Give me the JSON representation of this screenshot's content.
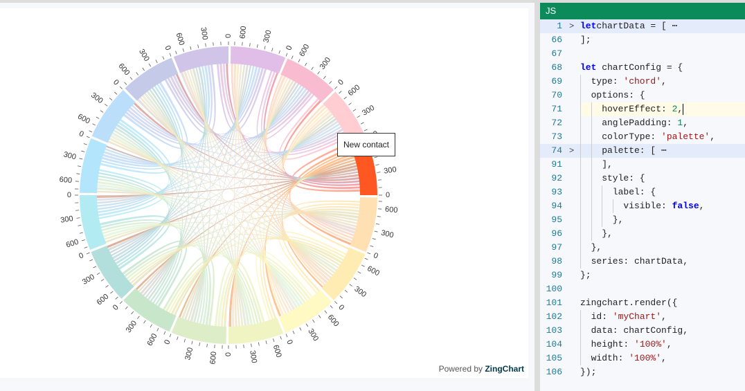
{
  "chart_data": {
    "type": "chord",
    "title": "",
    "groups": 16,
    "group_labels_visible": false,
    "tick_labels": [
      "0",
      "300",
      "600"
    ],
    "group_value_approx": 750,
    "hover_effect": 2,
    "angle_padding": 1,
    "color_type": "palette",
    "highlighted_group": {
      "index": 0,
      "label": "New contact",
      "color": "#ff5722"
    },
    "palette": [
      "#ff5722",
      "#ffcdd2",
      "#f8bbd0",
      "#e1bee7",
      "#d1c4e9",
      "#c5cae9",
      "#bbdefb",
      "#b3e5fc",
      "#b2ebf2",
      "#b2dfdb",
      "#c8e6c9",
      "#dcedc8",
      "#f0f4c3",
      "#fff9c4",
      "#ffecb3",
      "#ffe0b2"
    ]
  },
  "chart": {
    "tooltip": "New contact",
    "powered_by_prefix": "Powered by ",
    "powered_by_brand": "ZingChart"
  },
  "editor": {
    "tab_label": "JS",
    "lines": [
      {
        "n": "1",
        "fold": "›",
        "parts": [
          [
            "kw",
            "let"
          ],
          [
            "",
            "chartData = [ "
          ],
          [
            "",
            "⋯"
          ]
        ],
        "hl": "blue",
        "indent": 0
      },
      {
        "n": "66",
        "parts": [
          [
            "",
            "];"
          ]
        ],
        "indent": 0
      },
      {
        "n": "67",
        "parts": [],
        "indent": 0
      },
      {
        "n": "68",
        "parts": [
          [
            "kw",
            "let"
          ],
          [
            "",
            " chartConfig = {"
          ]
        ],
        "indent": 0
      },
      {
        "n": "69",
        "parts": [
          [
            "",
            "type: "
          ],
          [
            "str",
            "'chord'"
          ],
          [
            "",
            ","
          ]
        ],
        "indent": 1
      },
      {
        "n": "70",
        "parts": [
          [
            "",
            "options: {"
          ]
        ],
        "indent": 1
      },
      {
        "n": "71",
        "parts": [
          [
            "",
            "hoverEffect: "
          ],
          [
            "num",
            "2"
          ],
          [
            "",
            ","
          ]
        ],
        "indent": 2,
        "hl": "yellow",
        "caret": true
      },
      {
        "n": "72",
        "parts": [
          [
            "",
            "anglePadding: "
          ],
          [
            "num",
            "1"
          ],
          [
            "",
            ","
          ]
        ],
        "indent": 2
      },
      {
        "n": "73",
        "parts": [
          [
            "",
            "colorType: "
          ],
          [
            "str",
            "'palette'"
          ],
          [
            "",
            ","
          ]
        ],
        "indent": 2
      },
      {
        "n": "74",
        "fold": "›",
        "parts": [
          [
            "",
            "palette: [ "
          ],
          [
            "",
            "⋯"
          ]
        ],
        "indent": 2,
        "hl": "blue"
      },
      {
        "n": "91",
        "parts": [
          [
            "",
            "],"
          ]
        ],
        "indent": 2
      },
      {
        "n": "92",
        "parts": [
          [
            "",
            "style: {"
          ]
        ],
        "indent": 2
      },
      {
        "n": "93",
        "parts": [
          [
            "",
            "label: {"
          ]
        ],
        "indent": 3
      },
      {
        "n": "94",
        "parts": [
          [
            "",
            "visible: "
          ],
          [
            "kw",
            "false"
          ],
          [
            "",
            ","
          ]
        ],
        "indent": 4
      },
      {
        "n": "95",
        "parts": [
          [
            "",
            "},"
          ]
        ],
        "indent": 3
      },
      {
        "n": "96",
        "parts": [
          [
            "",
            "},"
          ]
        ],
        "indent": 2
      },
      {
        "n": "97",
        "parts": [
          [
            "",
            "},"
          ]
        ],
        "indent": 1
      },
      {
        "n": "98",
        "parts": [
          [
            "",
            "series: chartData,"
          ]
        ],
        "indent": 1
      },
      {
        "n": "99",
        "parts": [
          [
            "",
            "};"
          ]
        ],
        "indent": 0
      },
      {
        "n": "100",
        "parts": [],
        "indent": 0
      },
      {
        "n": "101",
        "parts": [
          [
            "",
            "zingchart.render({"
          ]
        ],
        "indent": 0
      },
      {
        "n": "102",
        "parts": [
          [
            "",
            "id: "
          ],
          [
            "str",
            "'myChart'"
          ],
          [
            "",
            ","
          ]
        ],
        "indent": 1
      },
      {
        "n": "103",
        "parts": [
          [
            "",
            "data: chartConfig,"
          ]
        ],
        "indent": 1
      },
      {
        "n": "104",
        "parts": [
          [
            "",
            "height: "
          ],
          [
            "str",
            "'100%'"
          ],
          [
            "",
            ","
          ]
        ],
        "indent": 1
      },
      {
        "n": "105",
        "parts": [
          [
            "",
            "width: "
          ],
          [
            "str",
            "'100%'"
          ],
          [
            "",
            ","
          ]
        ],
        "indent": 1
      },
      {
        "n": "106",
        "parts": [
          [
            "",
            "});"
          ]
        ],
        "indent": 0
      }
    ]
  }
}
